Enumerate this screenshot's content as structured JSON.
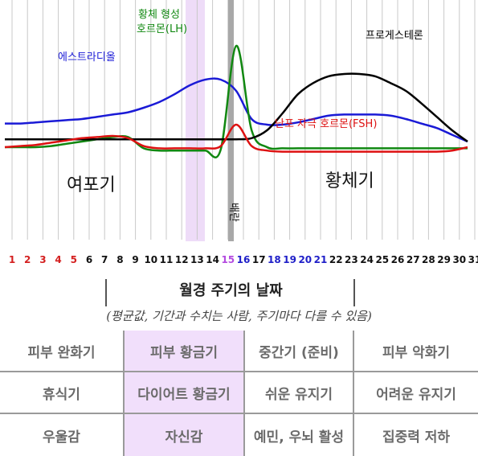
{
  "days": [
    "1",
    "2",
    "3",
    "4",
    "5",
    "6",
    "7",
    "8",
    "9",
    "10",
    "11",
    "12",
    "13",
    "14",
    "15",
    "16",
    "17",
    "18",
    "19",
    "20",
    "21",
    "22",
    "23",
    "24",
    "25",
    "26",
    "27",
    "28",
    "29",
    "30",
    "31"
  ],
  "day_colors": {
    "menstruation": "#d42020",
    "normal": "#111111",
    "ovulation_highlight": "#b44be0",
    "lh_peak": "#1f1fc8",
    "post_ovulation": "#1f1fc8"
  },
  "hormones": {
    "estradiol": {
      "label": "에스트라디올",
      "color": "#1a1ad6"
    },
    "lh": {
      "label_line1": "황체 형성",
      "label_line2": "호르몬(LH)",
      "color": "#118811"
    },
    "progesterone": {
      "label": "프로게스테론",
      "color": "#000000"
    },
    "fsh": {
      "label": "난포 자극 호르몬(FSH)",
      "color": "#dd1111"
    }
  },
  "phases": {
    "follicular": "여포기",
    "luteal": "황체기",
    "ovulation": "배란"
  },
  "header": {
    "title": "월경 주기의 날짜"
  },
  "note": "(평균값, 기간과 수치는 사람, 주기마다 다를 수 있음)",
  "table": {
    "rows": [
      [
        "피부 완화기",
        "피부 황금기",
        "중간기 (준비)",
        "피부 악화기"
      ],
      [
        "휴식기",
        "다이어트 황금기",
        "쉬운 유지기",
        "어려운 유지기"
      ],
      [
        "우울감",
        "자신감",
        "예민, 우뇌 활성",
        "집중력 저하"
      ]
    ]
  },
  "chart_data": {
    "type": "line",
    "x": [
      1,
      2,
      3,
      4,
      5,
      6,
      7,
      8,
      9,
      10,
      11,
      12,
      13,
      14,
      15,
      16,
      17,
      18,
      19,
      20,
      21,
      22,
      23,
      24,
      25,
      26,
      27,
      28,
      29,
      30,
      31
    ],
    "series": [
      {
        "name": "에스트라디올",
        "values": [
          26,
          26,
          27,
          28,
          29,
          30,
          32,
          34,
          36,
          40,
          45,
          52,
          60,
          65,
          65,
          55,
          30,
          25,
          25,
          27,
          30,
          33,
          34,
          34,
          34,
          33,
          30,
          26,
          22,
          16,
          10
        ]
      },
      {
        "name": "황체 형성 호르몬(LH)",
        "values": [
          5,
          5,
          5,
          6,
          8,
          10,
          12,
          14,
          14,
          4,
          2,
          2,
          2,
          2,
          3,
          95,
          20,
          5,
          4,
          4,
          4,
          4,
          4,
          4,
          4,
          4,
          4,
          4,
          4,
          4,
          4
        ]
      },
      {
        "name": "프로게스테론",
        "values": [
          12,
          12,
          12,
          12,
          12,
          12,
          12,
          12,
          12,
          12,
          12,
          12,
          12,
          12,
          12,
          12,
          13,
          20,
          35,
          52,
          62,
          68,
          70,
          70,
          68,
          62,
          55,
          44,
          32,
          20,
          10
        ]
      },
      {
        "name": "난포 자극 호르몬(FSH)",
        "values": [
          5,
          6,
          7,
          9,
          11,
          13,
          14,
          15,
          13,
          6,
          4,
          4,
          4,
          4,
          6,
          25,
          6,
          2,
          1,
          1,
          1,
          1,
          1,
          1,
          1,
          1,
          1,
          1,
          1,
          2,
          5
        ]
      }
    ],
    "ylim": [
      0,
      100
    ]
  }
}
